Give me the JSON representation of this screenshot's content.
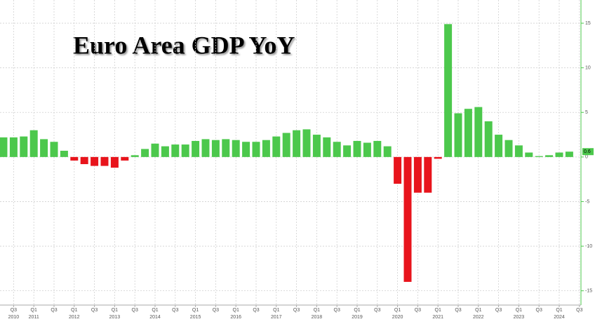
{
  "chart_data": {
    "type": "bar",
    "title": "Euro Area GDP YoY",
    "categories": [
      null,
      "Q3",
      null,
      "Q1",
      null,
      "Q3",
      null,
      "Q1",
      null,
      "Q3",
      null,
      "Q1",
      null,
      "Q3",
      null,
      "Q1",
      null,
      "Q3",
      null,
      "Q1",
      null,
      "Q3",
      null,
      "Q1",
      null,
      "Q3",
      null,
      "Q1",
      null,
      "Q3",
      null,
      "Q1",
      null,
      "Q3",
      null,
      "Q1",
      null,
      "Q3",
      null,
      "Q1",
      null,
      "Q3",
      null,
      "Q1",
      null,
      "Q3",
      null,
      "Q1",
      null,
      "Q3",
      null,
      "Q1",
      null,
      "Q3",
      null,
      "Q1",
      null,
      "Q3"
    ],
    "category_groups": [
      null,
      "2010",
      null,
      "2011",
      null,
      null,
      null,
      "2012",
      null,
      null,
      null,
      "2013",
      null,
      null,
      null,
      "2014",
      null,
      null,
      null,
      "2015",
      null,
      null,
      null,
      "2016",
      null,
      null,
      null,
      "2017",
      null,
      null,
      null,
      "2018",
      null,
      null,
      null,
      "2019",
      null,
      null,
      null,
      "2020",
      null,
      null,
      null,
      "2021",
      null,
      null,
      null,
      "2022",
      null,
      null,
      null,
      "2023",
      null,
      null,
      null,
      "2024",
      null,
      null
    ],
    "values": [
      2.2,
      2.2,
      2.3,
      3.0,
      2.0,
      1.7,
      0.7,
      -0.4,
      -0.8,
      -1.0,
      -1.0,
      -1.2,
      -0.4,
      0.2,
      0.9,
      1.5,
      1.2,
      1.4,
      1.4,
      1.8,
      2.0,
      1.9,
      2.0,
      1.9,
      1.7,
      1.7,
      1.9,
      2.3,
      2.7,
      3.0,
      3.1,
      2.5,
      2.2,
      1.7,
      1.3,
      1.8,
      1.6,
      1.8,
      1.2,
      -3.0,
      -14.0,
      -4.0,
      -4.0,
      -0.2,
      14.9,
      4.9,
      5.4,
      5.6,
      4.0,
      2.5,
      1.9,
      1.3,
      0.5,
      0.1,
      0.2,
      0.5,
      0.6,
      null
    ],
    "value_labels": [
      null,
      null,
      null,
      null,
      null,
      null,
      null,
      null,
      null,
      null,
      null,
      null,
      null,
      null,
      null,
      null,
      null,
      null,
      null,
      null,
      null,
      null,
      null,
      null,
      null,
      null,
      null,
      null,
      null,
      null,
      null,
      null,
      null,
      null,
      null,
      null,
      null,
      null,
      null,
      null,
      null,
      null,
      null,
      null,
      null,
      null,
      null,
      null,
      null,
      null,
      null,
      null,
      null,
      null,
      null,
      null,
      "0.6",
      null
    ],
    "positive_color": "#4cc84c",
    "negative_color": "#e8141c",
    "ylim": [
      -16.6,
      17.6
    ],
    "yticks": [
      -15,
      -10,
      -5,
      0,
      5,
      10,
      15
    ],
    "grid": true
  }
}
